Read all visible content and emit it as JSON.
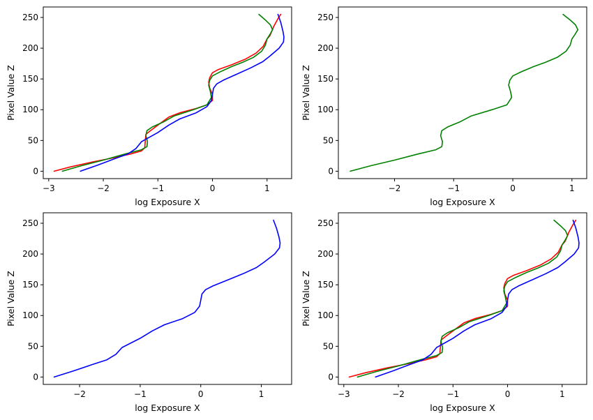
{
  "colors": {
    "red": "#ff0000",
    "green": "#008000",
    "blue": "#0000ff"
  },
  "chart_data": [
    {
      "type": "line",
      "xlabel": "log Exposure X",
      "ylabel": "Pixel Value Z",
      "xlim": [
        -3.1,
        1.45
      ],
      "ylim": [
        -12,
        267
      ],
      "xticks": [
        -3,
        -2,
        -1,
        0,
        1
      ],
      "yticks": [
        0,
        50,
        100,
        150,
        200,
        250
      ],
      "grid": false,
      "series": [
        {
          "color": "#ff0000",
          "x": [
            -2.9,
            -2.6,
            -2.2,
            -1.8,
            -1.5,
            -1.3,
            -1.24,
            -1.23,
            -1.22,
            -1.15,
            -1.0,
            -0.8,
            -0.6,
            -0.3,
            -0.1,
            0.0,
            0.0,
            -0.05,
            -0.07,
            -0.05,
            0.0,
            0.1,
            0.35,
            0.6,
            0.8,
            0.93,
            1.0,
            1.05,
            1.1,
            1.12,
            1.2,
            1.25
          ],
          "y": [
            0,
            7,
            15,
            22,
            28,
            33,
            38,
            50,
            60,
            65,
            75,
            88,
            95,
            102,
            108,
            115,
            125,
            135,
            145,
            152,
            160,
            165,
            173,
            182,
            192,
            203,
            215,
            220,
            230,
            235,
            248,
            255
          ]
        },
        {
          "color": "#008000",
          "x": [
            -2.75,
            -2.4,
            -2.0,
            -1.6,
            -1.3,
            -1.2,
            -1.19,
            -1.22,
            -1.2,
            -1.1,
            -0.9,
            -0.7,
            -0.35,
            -0.1,
            -0.02,
            -0.04,
            -0.07,
            -0.05,
            0.0,
            0.15,
            0.35,
            0.55,
            0.75,
            0.9,
            0.97,
            1.0,
            1.05,
            1.1,
            1.06,
            0.98,
            0.85
          ],
          "y": [
            0,
            9,
            18,
            28,
            35,
            40,
            48,
            58,
            66,
            72,
            80,
            90,
            100,
            108,
            120,
            130,
            140,
            148,
            155,
            162,
            170,
            177,
            185,
            195,
            205,
            215,
            222,
            230,
            238,
            245,
            255
          ]
        },
        {
          "color": "#0000ff",
          "x": [
            -2.42,
            -2.1,
            -1.8,
            -1.55,
            -1.4,
            -1.3,
            -1.0,
            -0.8,
            -0.6,
            -0.3,
            -0.1,
            -0.02,
            0.0,
            0.02,
            0.08,
            0.2,
            0.45,
            0.7,
            0.92,
            1.05,
            1.22,
            1.3,
            1.31,
            1.29,
            1.25,
            1.2
          ],
          "y": [
            0,
            10,
            20,
            28,
            37,
            48,
            63,
            75,
            85,
            95,
            105,
            115,
            125,
            135,
            142,
            148,
            158,
            168,
            178,
            187,
            200,
            210,
            218,
            228,
            242,
            255
          ]
        }
      ]
    },
    {
      "type": "line",
      "xlabel": "log Exposure X",
      "ylabel": "Pixel Value Z",
      "xlim": [
        -2.95,
        1.25
      ],
      "ylim": [
        -12,
        267
      ],
      "xticks": [
        -2,
        -1,
        0,
        1
      ],
      "yticks": [
        0,
        50,
        100,
        150,
        200,
        250
      ],
      "grid": false,
      "series_ref": [
        1
      ]
    },
    {
      "type": "line",
      "xlabel": "log Exposure X",
      "ylabel": "Pixel Value Z",
      "xlim": [
        -2.6,
        1.5
      ],
      "ylim": [
        -12,
        267
      ],
      "xticks": [
        -2,
        -1,
        0,
        1
      ],
      "yticks": [
        0,
        50,
        100,
        150,
        200,
        250
      ],
      "grid": false,
      "series_ref": [
        2
      ]
    },
    {
      "type": "line",
      "xlabel": "log Exposure X",
      "ylabel": "Pixel Value Z",
      "xlim": [
        -3.1,
        1.45
      ],
      "ylim": [
        -12,
        267
      ],
      "xticks": [
        -3,
        -2,
        -1,
        0,
        1
      ],
      "yticks": [
        0,
        50,
        100,
        150,
        200,
        250
      ],
      "grid": false,
      "series_ref": [
        0,
        1,
        2
      ]
    }
  ]
}
